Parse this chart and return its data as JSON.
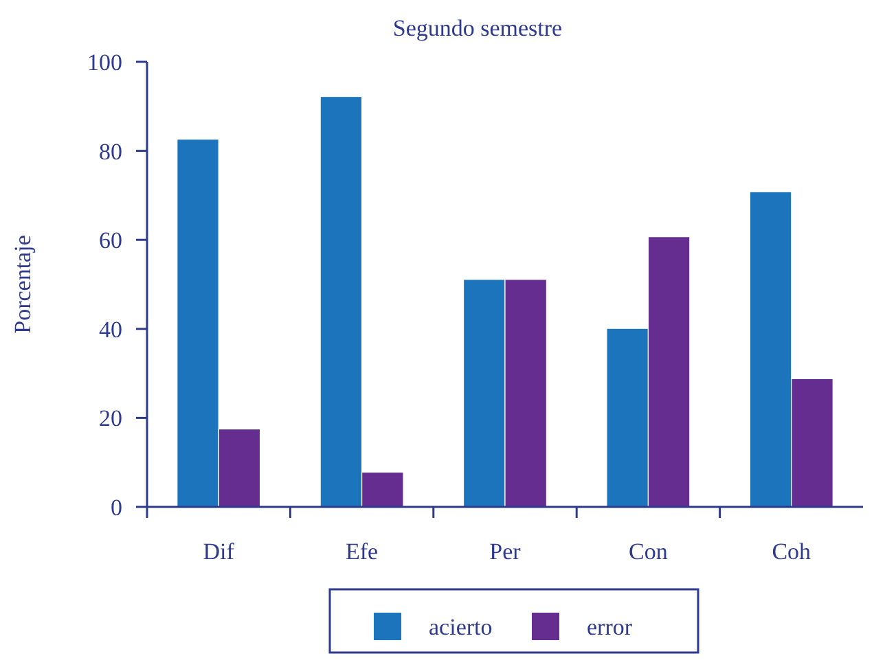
{
  "chart_data": {
    "type": "bar",
    "title": "Segundo semestre",
    "ylabel": "Porcentaje",
    "categories": [
      "Dif",
      "Efe",
      "Per",
      "Con",
      "Coh"
    ],
    "series": [
      {
        "name": "acierto",
        "color": "#1c75bc",
        "values": [
          82.6,
          92.2,
          51.1,
          40.1,
          70.8
        ]
      },
      {
        "name": "error",
        "color": "#662d91",
        "values": [
          17.5,
          7.8,
          51.1,
          60.7,
          28.8
        ]
      }
    ],
    "ylim": [
      0,
      100
    ],
    "yticks": [
      0,
      20,
      40,
      60,
      80,
      100
    ],
    "grid": false,
    "legend": "bottom"
  }
}
